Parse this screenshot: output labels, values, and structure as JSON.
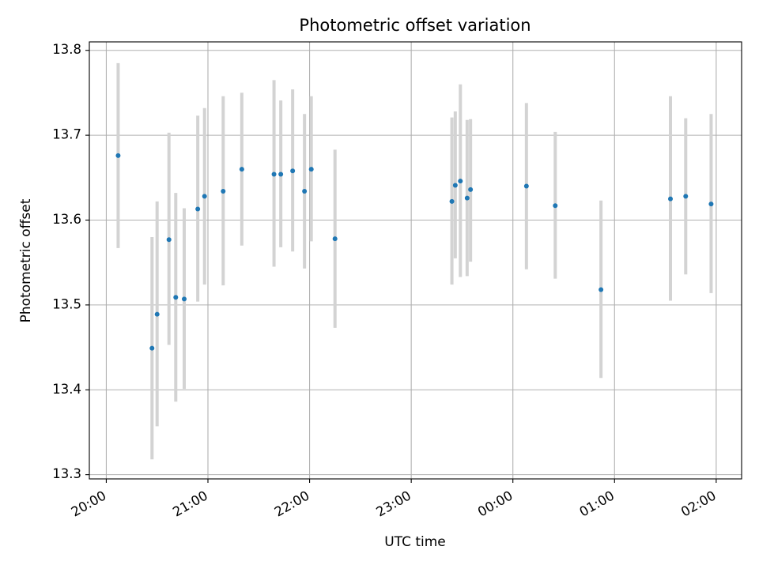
{
  "chart_data": {
    "type": "scatter",
    "title": "Photometric offset variation",
    "xlabel": "UTC time",
    "ylabel": "Photometric offset",
    "x_axis": {
      "type": "time",
      "min": "19:50",
      "max": "02:15",
      "ticks": [
        "20:00",
        "21:00",
        "22:00",
        "23:00",
        "00:00",
        "01:00",
        "02:00"
      ]
    },
    "y_axis": {
      "min": 13.295,
      "max": 13.81,
      "ticks": [
        "13.3",
        "13.4",
        "13.5",
        "13.6",
        "13.7",
        "13.8"
      ]
    },
    "grid": true,
    "point_color": "#1f77b4",
    "errorbar_color": "#d3d3d3",
    "points": [
      {
        "time": "20:07",
        "y": 13.676,
        "ylow": 13.567,
        "yhigh": 13.785
      },
      {
        "time": "20:27",
        "y": 13.449,
        "ylow": 13.318,
        "yhigh": 13.58
      },
      {
        "time": "20:30",
        "y": 13.489,
        "ylow": 13.357,
        "yhigh": 13.622
      },
      {
        "time": "20:37",
        "y": 13.577,
        "ylow": 13.453,
        "yhigh": 13.703
      },
      {
        "time": "20:41",
        "y": 13.509,
        "ylow": 13.386,
        "yhigh": 13.632
      },
      {
        "time": "20:46",
        "y": 13.507,
        "ylow": 13.401,
        "yhigh": 13.614
      },
      {
        "time": "20:54",
        "y": 13.613,
        "ylow": 13.504,
        "yhigh": 13.723
      },
      {
        "time": "20:58",
        "y": 13.628,
        "ylow": 13.524,
        "yhigh": 13.732
      },
      {
        "time": "21:09",
        "y": 13.634,
        "ylow": 13.523,
        "yhigh": 13.746
      },
      {
        "time": "21:20",
        "y": 13.66,
        "ylow": 13.57,
        "yhigh": 13.75
      },
      {
        "time": "21:39",
        "y": 13.654,
        "ylow": 13.545,
        "yhigh": 13.765
      },
      {
        "time": "21:43",
        "y": 13.654,
        "ylow": 13.568,
        "yhigh": 13.741
      },
      {
        "time": "21:50",
        "y": 13.658,
        "ylow": 13.563,
        "yhigh": 13.754
      },
      {
        "time": "21:57",
        "y": 13.634,
        "ylow": 13.543,
        "yhigh": 13.725
      },
      {
        "time": "22:01",
        "y": 13.66,
        "ylow": 13.575,
        "yhigh": 13.746
      },
      {
        "time": "22:15",
        "y": 13.578,
        "ylow": 13.473,
        "yhigh": 13.683
      },
      {
        "time": "23:24",
        "y": 13.622,
        "ylow": 13.524,
        "yhigh": 13.721
      },
      {
        "time": "23:26",
        "y": 13.641,
        "ylow": 13.555,
        "yhigh": 13.728
      },
      {
        "time": "23:29",
        "y": 13.646,
        "ylow": 13.533,
        "yhigh": 13.76
      },
      {
        "time": "23:33",
        "y": 13.626,
        "ylow": 13.534,
        "yhigh": 13.718
      },
      {
        "time": "23:35",
        "y": 13.636,
        "ylow": 13.551,
        "yhigh": 13.719
      },
      {
        "time": "00:08",
        "y": 13.64,
        "ylow": 13.542,
        "yhigh": 13.738
      },
      {
        "time": "00:25",
        "y": 13.617,
        "ylow": 13.531,
        "yhigh": 13.704
      },
      {
        "time": "00:52",
        "y": 13.518,
        "ylow": 13.414,
        "yhigh": 13.623
      },
      {
        "time": "01:33",
        "y": 13.625,
        "ylow": 13.505,
        "yhigh": 13.746
      },
      {
        "time": "01:42",
        "y": 13.628,
        "ylow": 13.536,
        "yhigh": 13.72
      },
      {
        "time": "01:57",
        "y": 13.619,
        "ylow": 13.514,
        "yhigh": 13.725
      }
    ]
  }
}
